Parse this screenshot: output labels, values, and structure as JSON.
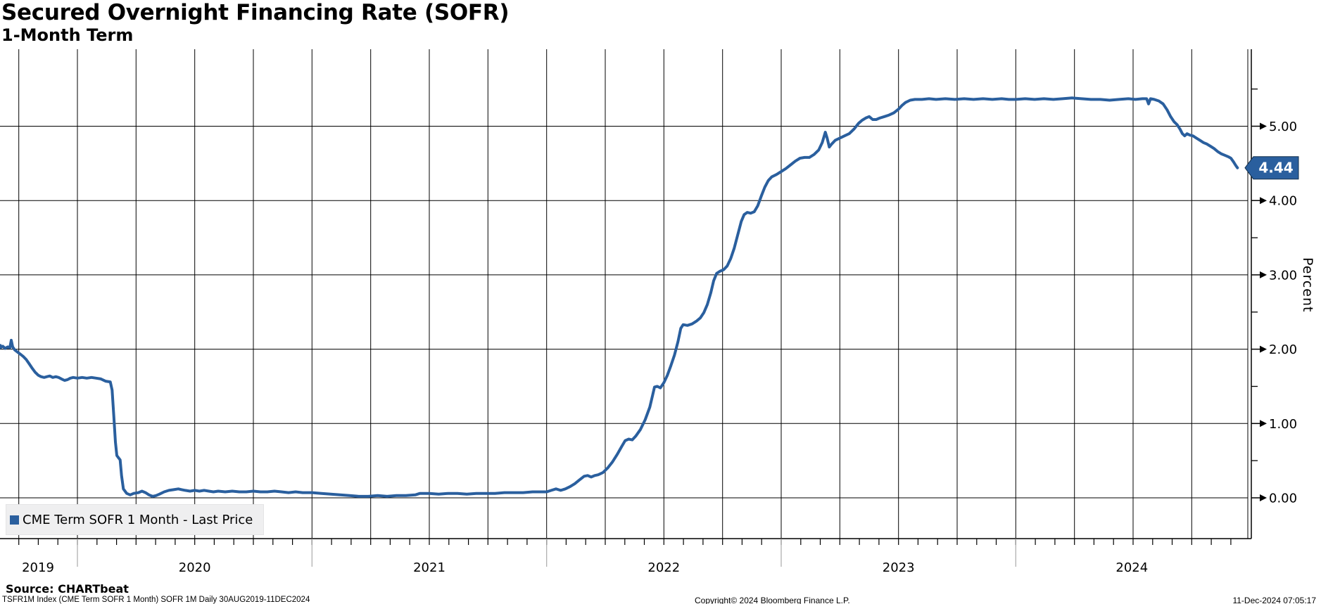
{
  "header": {
    "title": "Secured Overnight Financing Rate (SOFR)",
    "subtitle": "1-Month Term"
  },
  "legend": {
    "label": "CME Term SOFR 1 Month - Last Price",
    "marker_color": "#2a5f9e"
  },
  "source": {
    "label": "Source: CHARTbeat"
  },
  "footer": {
    "left": "TSFR1M Index (CME Term SOFR 1 Month) SOFR 1M  Daily 30AUG2019-11DEC2024",
    "center": "Copyright© 2024 Bloomberg Finance L.P.",
    "right": "11-Dec-2024 07:05:17"
  },
  "chart_data": {
    "type": "line",
    "title": "Secured Overnight Financing Rate (SOFR)",
    "subtitle": "1-Month Term",
    "ylabel": "Percent",
    "x_range": [
      "30AUG2019",
      "11DEC2024"
    ],
    "xlim_years": [
      2019.664,
      2024.99
    ],
    "ylim": [
      -0.55,
      6.04
    ],
    "grid": "both",
    "x_tick_years": [
      2019,
      2020,
      2021,
      2022,
      2023,
      2024
    ],
    "x_tick_labels": [
      "2019",
      "2020",
      "2021",
      "2022",
      "2023",
      "2024"
    ],
    "y_ticks_major": [
      0,
      1,
      2,
      3,
      4,
      5
    ],
    "y_tick_labels": [
      "0.00",
      "1.00",
      "2.00",
      "3.00",
      "4.00",
      "5.00"
    ],
    "y_minor_tick_step": 0.5,
    "grid_color": "#000000",
    "last_price": {
      "value": 4.44,
      "label": "4.44",
      "badge_color": "#2a5f9e",
      "badge_text_color": "#ffffff"
    },
    "series": [
      {
        "name": "CME Term SOFR 1 Month - Last Price",
        "color": "#2a5f9e",
        "points": [
          [
            2019.664,
            2.05
          ],
          [
            2019.672,
            2.02
          ],
          [
            2019.682,
            2.04
          ],
          [
            2019.692,
            2.01
          ],
          [
            2019.703,
            2.03
          ],
          [
            2019.712,
            2.02
          ],
          [
            2019.718,
            2.12
          ],
          [
            2019.724,
            2.03
          ],
          [
            2019.733,
            1.99
          ],
          [
            2019.745,
            1.96
          ],
          [
            2019.758,
            1.93
          ],
          [
            2019.77,
            1.9
          ],
          [
            2019.782,
            1.86
          ],
          [
            2019.795,
            1.8
          ],
          [
            2019.808,
            1.74
          ],
          [
            2019.82,
            1.69
          ],
          [
            2019.833,
            1.65
          ],
          [
            2019.845,
            1.63
          ],
          [
            2019.858,
            1.62
          ],
          [
            2019.87,
            1.63
          ],
          [
            2019.882,
            1.64
          ],
          [
            2019.895,
            1.62
          ],
          [
            2019.908,
            1.63
          ],
          [
            2019.92,
            1.62
          ],
          [
            2019.932,
            1.6
          ],
          [
            2019.945,
            1.58
          ],
          [
            2019.958,
            1.59
          ],
          [
            2019.97,
            1.61
          ],
          [
            2019.982,
            1.62
          ],
          [
            2020.0,
            1.61
          ],
          [
            2020.02,
            1.62
          ],
          [
            2020.04,
            1.61
          ],
          [
            2020.06,
            1.62
          ],
          [
            2020.08,
            1.61
          ],
          [
            2020.1,
            1.6
          ],
          [
            2020.12,
            1.57
          ],
          [
            2020.14,
            1.56
          ],
          [
            2020.148,
            1.45
          ],
          [
            2020.155,
            1.1
          ],
          [
            2020.162,
            0.75
          ],
          [
            2020.168,
            0.57
          ],
          [
            2020.175,
            0.54
          ],
          [
            2020.182,
            0.51
          ],
          [
            2020.188,
            0.3
          ],
          [
            2020.196,
            0.12
          ],
          [
            2020.21,
            0.06
          ],
          [
            2020.225,
            0.04
          ],
          [
            2020.24,
            0.06
          ],
          [
            2020.26,
            0.07
          ],
          [
            2020.275,
            0.09
          ],
          [
            2020.29,
            0.07
          ],
          [
            2020.305,
            0.04
          ],
          [
            2020.32,
            0.02
          ],
          [
            2020.335,
            0.03
          ],
          [
            2020.35,
            0.05
          ],
          [
            2020.37,
            0.08
          ],
          [
            2020.39,
            0.1
          ],
          [
            2020.41,
            0.11
          ],
          [
            2020.43,
            0.12
          ],
          [
            2020.445,
            0.11
          ],
          [
            2020.46,
            0.1
          ],
          [
            2020.48,
            0.09
          ],
          [
            2020.5,
            0.1
          ],
          [
            2020.52,
            0.09
          ],
          [
            2020.54,
            0.1
          ],
          [
            2020.56,
            0.09
          ],
          [
            2020.58,
            0.08
          ],
          [
            2020.6,
            0.09
          ],
          [
            2020.63,
            0.08
          ],
          [
            2020.66,
            0.09
          ],
          [
            2020.69,
            0.08
          ],
          [
            2020.72,
            0.08
          ],
          [
            2020.75,
            0.09
          ],
          [
            2020.78,
            0.08
          ],
          [
            2020.81,
            0.08
          ],
          [
            2020.84,
            0.09
          ],
          [
            2020.87,
            0.08
          ],
          [
            2020.9,
            0.07
          ],
          [
            2020.93,
            0.08
          ],
          [
            2020.96,
            0.07
          ],
          [
            2021.0,
            0.07
          ],
          [
            2021.04,
            0.06
          ],
          [
            2021.08,
            0.05
          ],
          [
            2021.12,
            0.04
          ],
          [
            2021.16,
            0.03
          ],
          [
            2021.2,
            0.02
          ],
          [
            2021.24,
            0.02
          ],
          [
            2021.28,
            0.03
          ],
          [
            2021.32,
            0.02
          ],
          [
            2021.36,
            0.03
          ],
          [
            2021.4,
            0.03
          ],
          [
            2021.44,
            0.04
          ],
          [
            2021.46,
            0.06
          ],
          [
            2021.5,
            0.06
          ],
          [
            2021.54,
            0.05
          ],
          [
            2021.58,
            0.06
          ],
          [
            2021.62,
            0.06
          ],
          [
            2021.66,
            0.05
          ],
          [
            2021.7,
            0.06
          ],
          [
            2021.74,
            0.06
          ],
          [
            2021.78,
            0.06
          ],
          [
            2021.82,
            0.07
          ],
          [
            2021.86,
            0.07
          ],
          [
            2021.9,
            0.07
          ],
          [
            2021.94,
            0.08
          ],
          [
            2021.97,
            0.08
          ],
          [
            2022.0,
            0.08
          ],
          [
            2022.02,
            0.1
          ],
          [
            2022.04,
            0.12
          ],
          [
            2022.06,
            0.1
          ],
          [
            2022.08,
            0.12
          ],
          [
            2022.1,
            0.15
          ],
          [
            2022.12,
            0.19
          ],
          [
            2022.14,
            0.24
          ],
          [
            2022.16,
            0.29
          ],
          [
            2022.175,
            0.3
          ],
          [
            2022.19,
            0.28
          ],
          [
            2022.205,
            0.3
          ],
          [
            2022.22,
            0.31
          ],
          [
            2022.24,
            0.34
          ],
          [
            2022.26,
            0.4
          ],
          [
            2022.28,
            0.48
          ],
          [
            2022.3,
            0.58
          ],
          [
            2022.32,
            0.69
          ],
          [
            2022.335,
            0.77
          ],
          [
            2022.35,
            0.79
          ],
          [
            2022.365,
            0.78
          ],
          [
            2022.38,
            0.83
          ],
          [
            2022.4,
            0.92
          ],
          [
            2022.42,
            1.05
          ],
          [
            2022.44,
            1.22
          ],
          [
            2022.452,
            1.38
          ],
          [
            2022.46,
            1.49
          ],
          [
            2022.472,
            1.5
          ],
          [
            2022.485,
            1.48
          ],
          [
            2022.5,
            1.55
          ],
          [
            2022.515,
            1.65
          ],
          [
            2022.53,
            1.78
          ],
          [
            2022.545,
            1.92
          ],
          [
            2022.56,
            2.1
          ],
          [
            2022.572,
            2.28
          ],
          [
            2022.582,
            2.33
          ],
          [
            2022.6,
            2.32
          ],
          [
            2022.62,
            2.34
          ],
          [
            2022.64,
            2.38
          ],
          [
            2022.655,
            2.42
          ],
          [
            2022.67,
            2.49
          ],
          [
            2022.685,
            2.6
          ],
          [
            2022.7,
            2.76
          ],
          [
            2022.712,
            2.92
          ],
          [
            2022.725,
            3.02
          ],
          [
            2022.74,
            3.05
          ],
          [
            2022.755,
            3.07
          ],
          [
            2022.77,
            3.12
          ],
          [
            2022.785,
            3.22
          ],
          [
            2022.8,
            3.36
          ],
          [
            2022.815,
            3.54
          ],
          [
            2022.83,
            3.72
          ],
          [
            2022.842,
            3.81
          ],
          [
            2022.855,
            3.84
          ],
          [
            2022.87,
            3.83
          ],
          [
            2022.885,
            3.85
          ],
          [
            2022.9,
            3.93
          ],
          [
            2022.915,
            4.06
          ],
          [
            2022.93,
            4.18
          ],
          [
            2022.945,
            4.27
          ],
          [
            2022.96,
            4.32
          ],
          [
            2022.98,
            4.35
          ],
          [
            2023.0,
            4.39
          ],
          [
            2023.02,
            4.43
          ],
          [
            2023.04,
            4.48
          ],
          [
            2023.06,
            4.53
          ],
          [
            2023.08,
            4.57
          ],
          [
            2023.1,
            4.58
          ],
          [
            2023.12,
            4.58
          ],
          [
            2023.14,
            4.62
          ],
          [
            2023.16,
            4.68
          ],
          [
            2023.175,
            4.78
          ],
          [
            2023.188,
            4.92
          ],
          [
            2023.196,
            4.84
          ],
          [
            2023.205,
            4.72
          ],
          [
            2023.215,
            4.76
          ],
          [
            2023.23,
            4.81
          ],
          [
            2023.25,
            4.84
          ],
          [
            2023.27,
            4.87
          ],
          [
            2023.29,
            4.9
          ],
          [
            2023.31,
            4.96
          ],
          [
            2023.33,
            5.04
          ],
          [
            2023.345,
            5.08
          ],
          [
            2023.36,
            5.11
          ],
          [
            2023.375,
            5.13
          ],
          [
            2023.39,
            5.09
          ],
          [
            2023.405,
            5.09
          ],
          [
            2023.42,
            5.11
          ],
          [
            2023.44,
            5.13
          ],
          [
            2023.46,
            5.15
          ],
          [
            2023.48,
            5.18
          ],
          [
            2023.5,
            5.23
          ],
          [
            2023.515,
            5.28
          ],
          [
            2023.53,
            5.32
          ],
          [
            2023.55,
            5.35
          ],
          [
            2023.57,
            5.36
          ],
          [
            2023.6,
            5.36
          ],
          [
            2023.63,
            5.37
          ],
          [
            2023.66,
            5.36
          ],
          [
            2023.7,
            5.37
          ],
          [
            2023.74,
            5.36
          ],
          [
            2023.78,
            5.37
          ],
          [
            2023.82,
            5.36
          ],
          [
            2023.86,
            5.37
          ],
          [
            2023.9,
            5.36
          ],
          [
            2023.94,
            5.37
          ],
          [
            2023.97,
            5.36
          ],
          [
            2024.0,
            5.36
          ],
          [
            2024.04,
            5.37
          ],
          [
            2024.08,
            5.36
          ],
          [
            2024.12,
            5.37
          ],
          [
            2024.16,
            5.36
          ],
          [
            2024.2,
            5.37
          ],
          [
            2024.24,
            5.38
          ],
          [
            2024.28,
            5.37
          ],
          [
            2024.32,
            5.36
          ],
          [
            2024.36,
            5.36
          ],
          [
            2024.4,
            5.35
          ],
          [
            2024.44,
            5.36
          ],
          [
            2024.48,
            5.37
          ],
          [
            2024.51,
            5.36
          ],
          [
            2024.54,
            5.37
          ],
          [
            2024.558,
            5.37
          ],
          [
            2024.566,
            5.3
          ],
          [
            2024.574,
            5.37
          ],
          [
            2024.59,
            5.36
          ],
          [
            2024.61,
            5.34
          ],
          [
            2024.628,
            5.3
          ],
          [
            2024.645,
            5.22
          ],
          [
            2024.66,
            5.13
          ],
          [
            2024.675,
            5.06
          ],
          [
            2024.688,
            5.02
          ],
          [
            2024.7,
            4.96
          ],
          [
            2024.71,
            4.9
          ],
          [
            2024.72,
            4.87
          ],
          [
            2024.73,
            4.9
          ],
          [
            2024.742,
            4.88
          ],
          [
            2024.755,
            4.87
          ],
          [
            2024.77,
            4.84
          ],
          [
            2024.785,
            4.81
          ],
          [
            2024.8,
            4.78
          ],
          [
            2024.815,
            4.76
          ],
          [
            2024.83,
            4.73
          ],
          [
            2024.845,
            4.7
          ],
          [
            2024.86,
            4.66
          ],
          [
            2024.875,
            4.63
          ],
          [
            2024.89,
            4.61
          ],
          [
            2024.905,
            4.59
          ],
          [
            2024.917,
            4.57
          ],
          [
            2024.928,
            4.52
          ],
          [
            2024.938,
            4.47
          ],
          [
            2024.945,
            4.44
          ]
        ]
      }
    ]
  }
}
